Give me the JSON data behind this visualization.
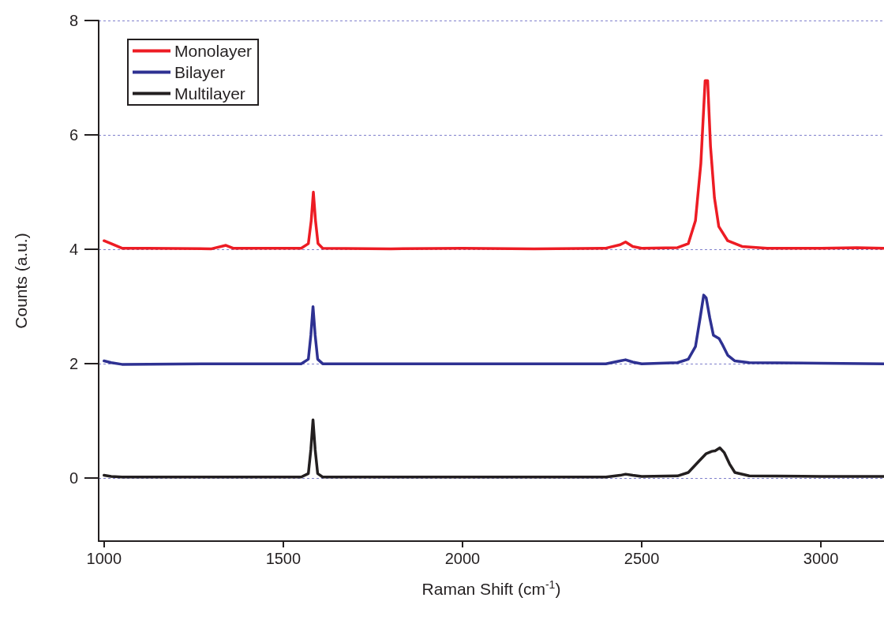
{
  "chart_data": {
    "type": "line",
    "xlabel": "Raman Shift (cm$^{-1}$)",
    "ylabel": "Counts (a.u.)",
    "xlim": [
      985,
      3176
    ],
    "xticks": [
      1000,
      1500,
      2000,
      2500,
      3000
    ],
    "ylim": [
      -1.1,
      8
    ],
    "yticks": [
      0,
      2,
      4,
      6,
      8
    ],
    "grid": "y",
    "legend": "top left",
    "marker": "none",
    "line_style": "solid",
    "series": [
      {
        "name": "Monolayer",
        "color": "#ed1c24",
        "x": [
          1000,
          1020,
          1050,
          1120,
          1300,
          1340,
          1360,
          1550,
          1570,
          1578,
          1584,
          1590,
          1597,
          1610,
          1800,
          2000,
          2200,
          2400,
          2440,
          2455,
          2475,
          2500,
          2600,
          2630,
          2650,
          2665,
          2677,
          2684,
          2692,
          2703,
          2715,
          2740,
          2780,
          2850,
          3000,
          3100,
          3176
        ],
        "values": [
          4.15,
          4.1,
          4.02,
          4.02,
          4.01,
          4.07,
          4.02,
          4.02,
          4.1,
          4.5,
          5.0,
          4.5,
          4.1,
          4.02,
          4.01,
          4.02,
          4.01,
          4.02,
          4.08,
          4.13,
          4.05,
          4.02,
          4.03,
          4.1,
          4.5,
          5.5,
          6.95,
          6.95,
          5.8,
          4.9,
          4.4,
          4.15,
          4.05,
          4.02,
          4.02,
          4.03,
          4.02
        ]
      },
      {
        "name": "Bilayer",
        "color": "#2e3192",
        "x": [
          1000,
          1020,
          1050,
          1300,
          1550,
          1570,
          1577,
          1583,
          1589,
          1596,
          1610,
          1800,
          2000,
          2200,
          2400,
          2440,
          2455,
          2475,
          2500,
          2600,
          2630,
          2650,
          2663,
          2673,
          2680,
          2690,
          2700,
          2716,
          2724,
          2740,
          2760,
          2800,
          3000,
          3176
        ],
        "values": [
          2.05,
          2.02,
          1.99,
          2.0,
          2.0,
          2.08,
          2.5,
          3.0,
          2.5,
          2.08,
          2.0,
          2.0,
          2.0,
          2.0,
          2.0,
          2.05,
          2.07,
          2.03,
          2.0,
          2.02,
          2.08,
          2.3,
          2.8,
          3.2,
          3.15,
          2.8,
          2.5,
          2.44,
          2.35,
          2.15,
          2.05,
          2.02,
          2.01,
          2.0
        ]
      },
      {
        "name": "Multilayer",
        "color": "#231f20",
        "x": [
          1000,
          1020,
          1050,
          1300,
          1550,
          1570,
          1577,
          1583,
          1589,
          1596,
          1610,
          1800,
          2000,
          2200,
          2400,
          2440,
          2455,
          2475,
          2500,
          2600,
          2630,
          2660,
          2680,
          2696,
          2705,
          2718,
          2730,
          2745,
          2760,
          2800,
          3000,
          3176
        ],
        "values": [
          0.05,
          0.03,
          0.02,
          0.02,
          0.02,
          0.08,
          0.5,
          1.02,
          0.5,
          0.08,
          0.02,
          0.02,
          0.02,
          0.02,
          0.02,
          0.05,
          0.07,
          0.05,
          0.03,
          0.04,
          0.1,
          0.3,
          0.43,
          0.47,
          0.48,
          0.53,
          0.45,
          0.25,
          0.1,
          0.04,
          0.03,
          0.03
        ]
      }
    ]
  }
}
